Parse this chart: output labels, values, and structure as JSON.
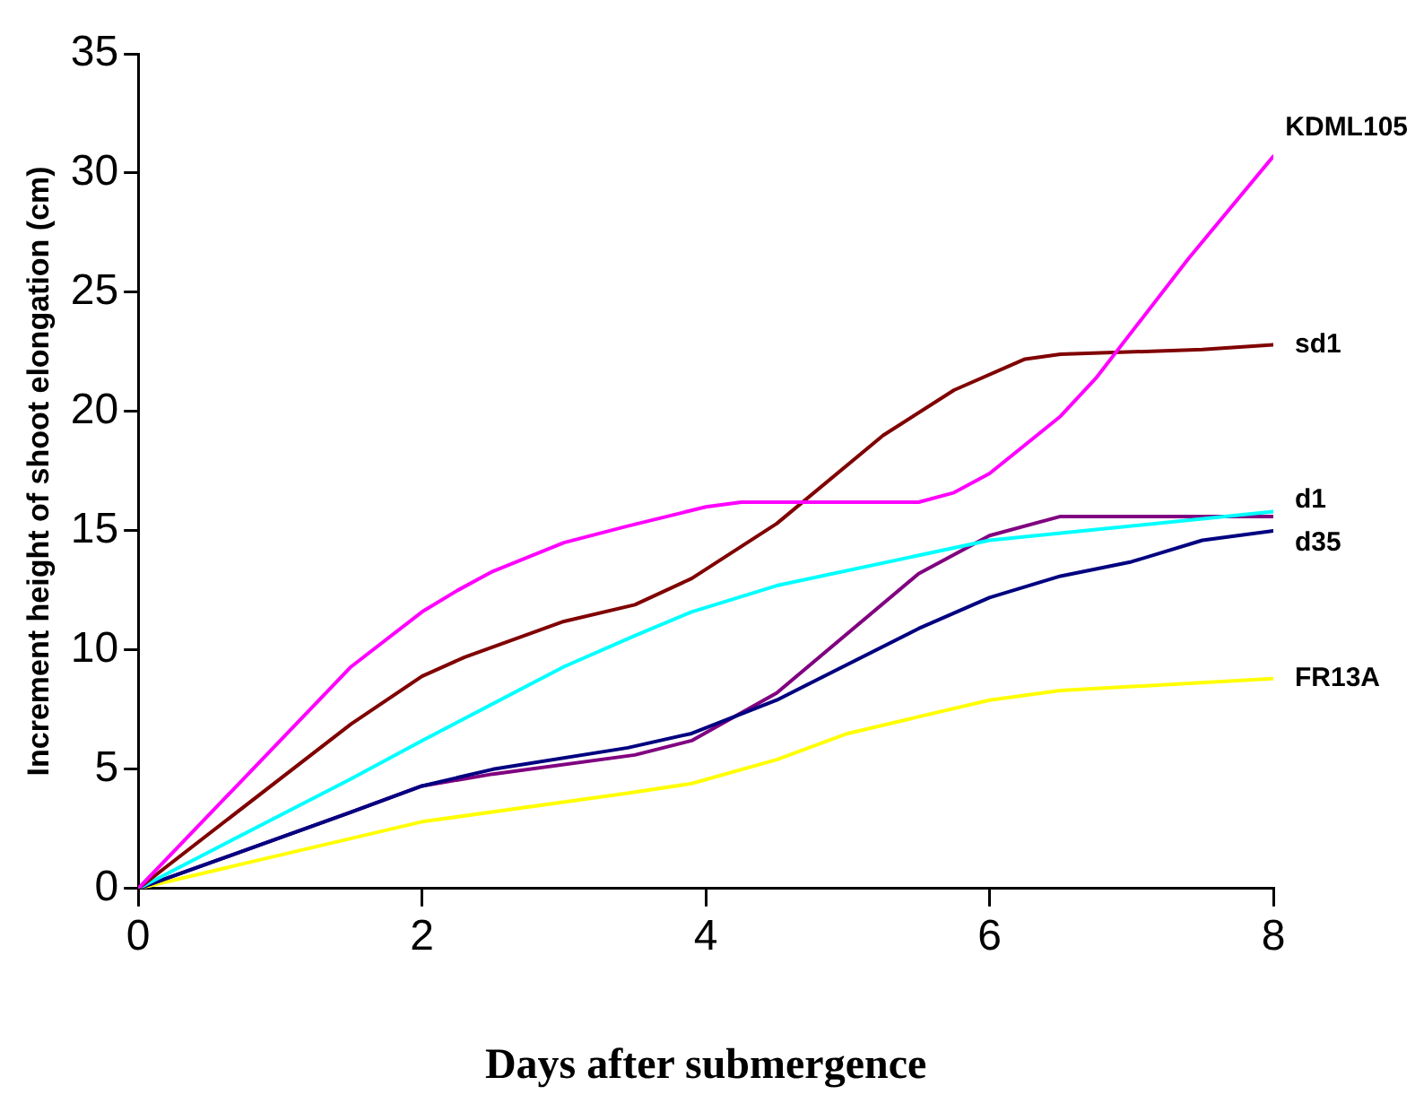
{
  "chart_data": {
    "type": "line",
    "xlabel": "Days after submergence",
    "ylabel": "Increment height of shoot elongation (cm)",
    "xlim": [
      0,
      8
    ],
    "xticks": [
      0,
      2,
      4,
      6,
      8
    ],
    "ylim": [
      0,
      35
    ],
    "yticks": [
      0,
      5,
      10,
      15,
      20,
      25,
      30,
      35
    ],
    "grid": false,
    "legend": false,
    "marker": "none",
    "line_style": "solid",
    "series": [
      {
        "name": "KDML105",
        "color": "#ff00ff",
        "x": [
          0,
          1.5,
          2,
          2.25,
          2.5,
          3,
          3.45,
          4,
          4.25,
          5.5,
          5.75,
          6,
          6.5,
          6.75,
          7.4,
          8
        ],
        "values": [
          0,
          9.3,
          11.6,
          12.5,
          13.3,
          14.5,
          15.2,
          16.0,
          16.2,
          16.2,
          16.6,
          17.4,
          19.8,
          21.4,
          26.4,
          30.7
        ]
      },
      {
        "name": "sd1",
        "color": "#800000",
        "x": [
          0,
          1.5,
          2,
          2.3,
          3,
          3.5,
          3.9,
          4.5,
          5.25,
          5.75,
          6.25,
          6.5,
          7.5,
          8
        ],
        "values": [
          0,
          6.9,
          8.9,
          9.7,
          11.2,
          11.9,
          13.0,
          15.3,
          19.0,
          20.9,
          22.2,
          22.4,
          22.6,
          22.8
        ]
      },
      {
        "name": "d1",
        "color": "#00ffff",
        "x": [
          0,
          1.5,
          2,
          3,
          3.5,
          3.9,
          4.5,
          6,
          8
        ],
        "values": [
          0,
          4.6,
          6.2,
          9.3,
          10.6,
          11.6,
          12.7,
          14.6,
          15.8
        ]
      },
      {
        "name": "d35",
        "color": "#000080",
        "x": [
          0,
          1.5,
          2,
          2.5,
          3.45,
          3.9,
          4.5,
          5.5,
          6,
          6.5,
          7,
          7.5,
          8
        ],
        "values": [
          0,
          3.2,
          4.3,
          5.0,
          5.9,
          6.5,
          7.9,
          10.9,
          12.2,
          13.1,
          13.7,
          14.6,
          15.0
        ]
      },
      {
        "color": "#800080",
        "x": [
          0,
          1.5,
          2,
          2.5,
          3.5,
          3.9,
          4.5,
          5.5,
          6,
          6.5,
          8
        ],
        "values": [
          0,
          3.2,
          4.3,
          4.8,
          5.6,
          6.2,
          8.2,
          13.2,
          14.8,
          15.6,
          15.6
        ]
      },
      {
        "name": "FR13A",
        "color": "#ffff00",
        "x": [
          0,
          2,
          3.45,
          3.9,
          4.5,
          5,
          6,
          6.5,
          8
        ],
        "values": [
          0,
          2.8,
          4.0,
          4.4,
          5.4,
          6.5,
          7.9,
          8.3,
          8.8
        ]
      }
    ]
  }
}
